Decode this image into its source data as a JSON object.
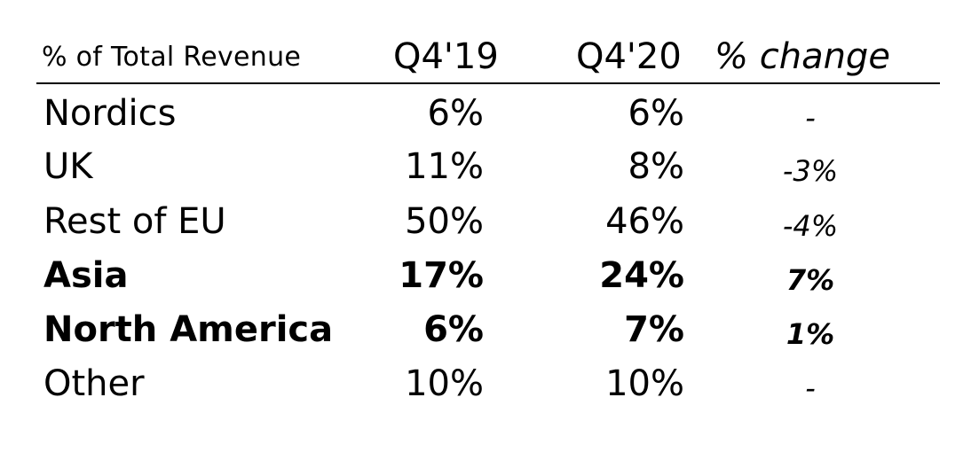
{
  "chart_data": {
    "type": "table",
    "columns": [
      "% of Total Revenue",
      "Q4'19",
      "Q4'20",
      "% change"
    ],
    "rows": [
      {
        "label": "Nordics",
        "q4_19": "6%",
        "q4_20": "6%",
        "change": "-",
        "bold": false
      },
      {
        "label": "UK",
        "q4_19": "11%",
        "q4_20": "8%",
        "change": "-3%",
        "bold": false
      },
      {
        "label": "Rest of EU",
        "q4_19": "50%",
        "q4_20": "46%",
        "change": "-4%",
        "bold": false
      },
      {
        "label": "Asia",
        "q4_19": "17%",
        "q4_20": "24%",
        "change": "7%",
        "bold": true
      },
      {
        "label": "North America",
        "q4_19": "6%",
        "q4_20": "7%",
        "change": "1%",
        "bold": true
      },
      {
        "label": "Other",
        "q4_19": "10%",
        "q4_20": "10%",
        "change": "-",
        "bold": false
      }
    ]
  }
}
